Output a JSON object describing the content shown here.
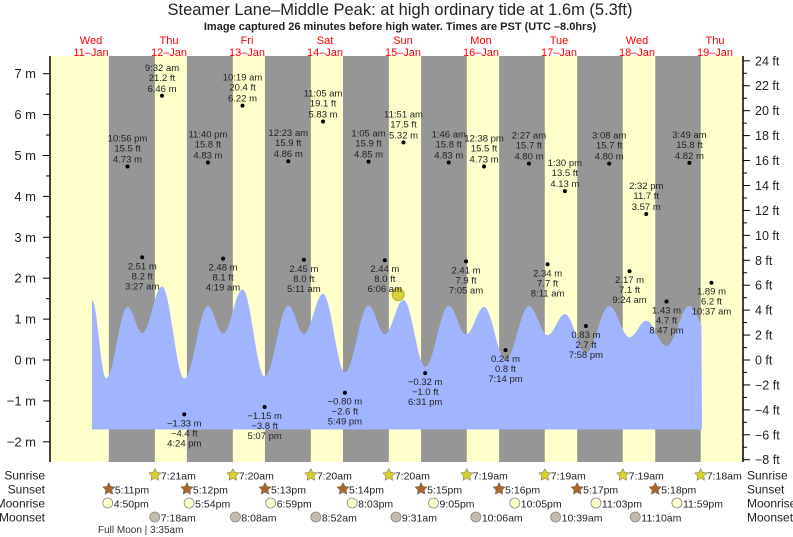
{
  "title": "Steamer Lane–Middle Peak: at high  ordinary tide at 1.6m (5.3ft)",
  "subtitle": "Image captured 26 minutes before high water. Times are PST (UTC –8.0hrs)",
  "colors": {
    "day": "#ffffcc",
    "night": "#969696",
    "water": "#a0b4ff",
    "day_label": "#ff0000",
    "marker": "#d6d23a",
    "sunrise": "#d6cf2e",
    "sunset": "#a8672e",
    "moonrise": "#ffffcc",
    "moonset": "#c2bcaa"
  },
  "chart_data": {
    "type": "area",
    "days": [
      {
        "dow": "Wed",
        "date": "11–Jan"
      },
      {
        "dow": "Thu",
        "date": "12–Jan"
      },
      {
        "dow": "Fri",
        "date": "13–Jan"
      },
      {
        "dow": "Sat",
        "date": "14–Jan"
      },
      {
        "dow": "Sun",
        "date": "15–Jan"
      },
      {
        "dow": "Mon",
        "date": "16–Jan"
      },
      {
        "dow": "Tue",
        "date": "17–Jan"
      },
      {
        "dow": "Wed",
        "date": "18–Jan"
      },
      {
        "dow": "Thu",
        "date": "19–Jan"
      }
    ],
    "y_left": {
      "unit": "m",
      "range": [
        -2.2,
        7.4
      ],
      "ticks": [
        "7 m",
        "6 m",
        "5 m",
        "4 m",
        "3 m",
        "2 m",
        "1 m",
        "0 m",
        "−1 m",
        "−2 m"
      ],
      "tick_values": [
        7,
        6,
        5,
        4,
        3,
        2,
        1,
        0,
        -1,
        -2
      ]
    },
    "y_right": {
      "unit": "ft",
      "ticks": [
        "24 ft",
        "22 ft",
        "20 ft",
        "18 ft",
        "16 ft",
        "14 ft",
        "12 ft",
        "10 ft",
        "8 ft",
        "6 ft",
        "4 ft",
        "2 ft",
        "0 ft",
        "−2 ft",
        "−4 ft",
        "−6 ft",
        "−8 ft"
      ],
      "tick_values": [
        24,
        22,
        20,
        18,
        16,
        14,
        12,
        10,
        8,
        6,
        4,
        2,
        0,
        -2,
        -4,
        -6,
        -8
      ]
    },
    "extremes": [
      {
        "day": 0,
        "time": "10:56 pm",
        "m": "4.73 m",
        "ft": "15.5 ft",
        "value": 4.73
      },
      {
        "day": 1,
        "time": "3:27 am",
        "m": "2.51 m",
        "ft": "8.2 ft",
        "value": 2.51
      },
      {
        "day": 1,
        "time": "9:32 am",
        "m": "6.46 m",
        "ft": "21.2 ft",
        "value": 6.46
      },
      {
        "day": 1,
        "time": "4:24 pm",
        "m": "−1.33 m",
        "ft": "−4.4 ft",
        "value": -1.33
      },
      {
        "day": 1,
        "time": "11:40 pm",
        "m": "4.83 m",
        "ft": "15.8 ft",
        "value": 4.83
      },
      {
        "day": 2,
        "time": "4:19 am",
        "m": "2.48 m",
        "ft": "8.1 ft",
        "value": 2.48
      },
      {
        "day": 2,
        "time": "10:19 am",
        "m": "6.22 m",
        "ft": "20.4 ft",
        "value": 6.22
      },
      {
        "day": 2,
        "time": "5:07 pm",
        "m": "−1.15 m",
        "ft": "−3.8 ft",
        "value": -1.15
      },
      {
        "day": 3,
        "time": "12:23 am",
        "m": "4.86 m",
        "ft": "15.9 ft",
        "value": 4.86
      },
      {
        "day": 3,
        "time": "5:11 am",
        "m": "2.45 m",
        "ft": "8.0 ft",
        "value": 2.45
      },
      {
        "day": 3,
        "time": "11:05 am",
        "m": "5.83 m",
        "ft": "19.1 ft",
        "value": 5.83
      },
      {
        "day": 3,
        "time": "5:49 pm",
        "m": "−0.80 m",
        "ft": "−2.6 ft",
        "value": -0.8
      },
      {
        "day": 4,
        "time": "1:05 am",
        "m": "4.85 m",
        "ft": "15.9 ft",
        "value": 4.85
      },
      {
        "day": 4,
        "time": "6:06 am",
        "m": "2.44 m",
        "ft": "8.0 ft",
        "value": 2.44
      },
      {
        "day": 4,
        "time": "11:51 am",
        "m": "5.32 m",
        "ft": "17.5 ft",
        "value": 5.32
      },
      {
        "day": 4,
        "time": "6:31 pm",
        "m": "−0.32 m",
        "ft": "−1.0 ft",
        "value": -0.32
      },
      {
        "day": 5,
        "time": "1:46 am",
        "m": "4.83 m",
        "ft": "15.8 ft",
        "value": 4.83
      },
      {
        "day": 5,
        "time": "7:05 am",
        "m": "2.41 m",
        "ft": "7.9 ft",
        "value": 2.41
      },
      {
        "day": 5,
        "time": "12:38 pm",
        "m": "4.73 m",
        "ft": "15.5 ft",
        "value": 4.73
      },
      {
        "day": 5,
        "time": "7:14 pm",
        "m": "0.24 m",
        "ft": "0.8 ft",
        "value": 0.24
      },
      {
        "day": 6,
        "time": "2:27 am",
        "m": "4.80 m",
        "ft": "15.7 ft",
        "value": 4.8
      },
      {
        "day": 6,
        "time": "8:11 am",
        "m": "2.34 m",
        "ft": "7.7 ft",
        "value": 2.34
      },
      {
        "day": 6,
        "time": "1:30 pm",
        "m": "4.13 m",
        "ft": "13.5 ft",
        "value": 4.13
      },
      {
        "day": 6,
        "time": "7:58 pm",
        "m": "0.83 m",
        "ft": "2.7 ft",
        "value": 0.83
      },
      {
        "day": 7,
        "time": "3:08 am",
        "m": "4.80 m",
        "ft": "15.7 ft",
        "value": 4.8
      },
      {
        "day": 7,
        "time": "9:24 am",
        "m": "2.17 m",
        "ft": "7.1 ft",
        "value": 2.17
      },
      {
        "day": 7,
        "time": "2:32 pm",
        "m": "3.57 m",
        "ft": "11.7 ft",
        "value": 3.57
      },
      {
        "day": 7,
        "time": "8:47 pm",
        "m": "1.43 m",
        "ft": "4.7 ft",
        "value": 1.43
      },
      {
        "day": 8,
        "time": "3:49 am",
        "m": "4.82 m",
        "ft": "15.8 ft",
        "value": 4.82
      },
      {
        "day": 8,
        "time": "10:37 am",
        "m": "1.89 m",
        "ft": "6.2 ft",
        "value": 1.89
      }
    ],
    "current": {
      "day": 4,
      "time": "11:25 am",
      "value": 1.6
    }
  },
  "rows": {
    "sunrise": {
      "label": "Sunrise",
      "events": [
        {
          "day": 1,
          "time": "7:21am"
        },
        {
          "day": 2,
          "time": "7:20am"
        },
        {
          "day": 3,
          "time": "7:20am"
        },
        {
          "day": 4,
          "time": "7:20am"
        },
        {
          "day": 5,
          "time": "7:19am"
        },
        {
          "day": 6,
          "time": "7:19am"
        },
        {
          "day": 7,
          "time": "7:19am"
        },
        {
          "day": 8,
          "time": "7:18am"
        }
      ]
    },
    "sunset": {
      "label": "Sunset",
      "events": [
        {
          "day": 0,
          "time": "5:11pm"
        },
        {
          "day": 1,
          "time": "5:12pm"
        },
        {
          "day": 2,
          "time": "5:13pm"
        },
        {
          "day": 3,
          "time": "5:14pm"
        },
        {
          "day": 4,
          "time": "5:15pm"
        },
        {
          "day": 5,
          "time": "5:16pm"
        },
        {
          "day": 6,
          "time": "5:17pm"
        },
        {
          "day": 7,
          "time": "5:18pm"
        }
      ]
    },
    "moonrise": {
      "label": "Moonrise",
      "events": [
        {
          "day": 0,
          "time": "4:50pm"
        },
        {
          "day": 1,
          "time": "5:54pm"
        },
        {
          "day": 2,
          "time": "6:59pm"
        },
        {
          "day": 3,
          "time": "8:03pm"
        },
        {
          "day": 4,
          "time": "9:05pm"
        },
        {
          "day": 5,
          "time": "10:05pm"
        },
        {
          "day": 6,
          "time": "11:03pm"
        },
        {
          "day": 7,
          "time": "11:59pm"
        }
      ]
    },
    "moonset": {
      "label": "Moonset",
      "events": [
        {
          "day": 1,
          "time": "7:18am"
        },
        {
          "day": 2,
          "time": "8:08am"
        },
        {
          "day": 3,
          "time": "8:52am"
        },
        {
          "day": 4,
          "time": "9:31am"
        },
        {
          "day": 5,
          "time": "10:06am"
        },
        {
          "day": 6,
          "time": "10:39am"
        },
        {
          "day": 7,
          "time": "11:10am"
        }
      ]
    }
  },
  "moon_phase": "Full Moon | 3:35am"
}
